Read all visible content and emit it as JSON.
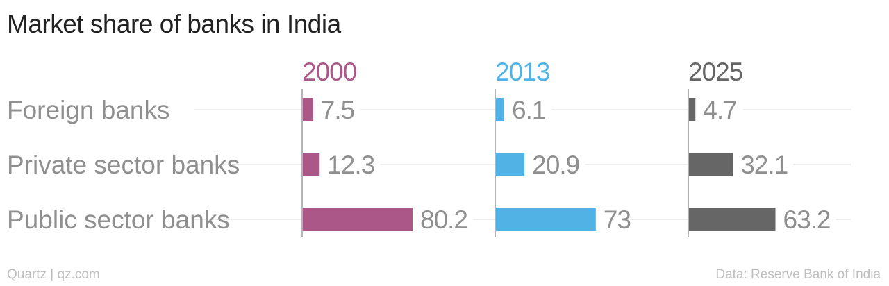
{
  "title": "Market share of banks in India",
  "footer": {
    "credit": "Quartz | qz.com",
    "source": "Data: Reserve Bank of India"
  },
  "chart_data": {
    "type": "bar",
    "orientation": "horizontal",
    "categories": [
      "Foreign banks",
      "Private sector banks",
      "Public sector banks"
    ],
    "series": [
      {
        "name": "2000",
        "color": "#ab5787",
        "values": [
          7.5,
          12.3,
          80.2
        ]
      },
      {
        "name": "2013",
        "color": "#51b2e5",
        "values": [
          6.1,
          20.9,
          73
        ]
      },
      {
        "name": "2025",
        "color": "#666666",
        "values": [
          4.7,
          32.1,
          63.2
        ]
      }
    ],
    "value_labels": [
      [
        "7.5",
        "12.3",
        "80.2"
      ],
      [
        "6.1",
        "20.9",
        "73"
      ],
      [
        "4.7",
        "32.1",
        "63.2"
      ]
    ],
    "xlim": [
      0,
      100
    ],
    "gridlines": true,
    "legend": "none"
  }
}
